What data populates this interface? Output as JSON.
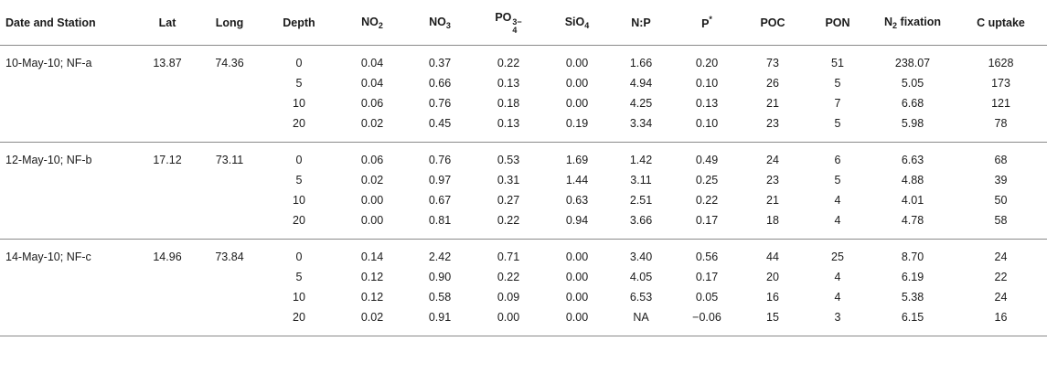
{
  "headers": {
    "date_station": "Date and Station",
    "lat": "Lat",
    "long": "Long",
    "depth": "Depth",
    "no2_base": "NO",
    "no2_sub": "2",
    "no3_base": "NO",
    "no3_sub": "3",
    "po4_base": "PO",
    "po4_sup": "3−",
    "po4_sub": "4",
    "sio4_base": "SiO",
    "sio4_sub": "4",
    "np": "N:P",
    "pstar_base": "P",
    "pstar_sup": "*",
    "poc": "POC",
    "pon": "PON",
    "n2_base": "N",
    "n2_sub": "2",
    "n2_rest": " fixation",
    "c_uptake": "C uptake"
  },
  "groups": [
    {
      "station": "10-May-10; NF-a",
      "lat": "13.87",
      "long": "74.36",
      "rows": [
        [
          "0",
          "0.04",
          "0.37",
          "0.22",
          "0.00",
          "1.66",
          "0.20",
          "73",
          "51",
          "238.07",
          "1628"
        ],
        [
          "5",
          "0.04",
          "0.66",
          "0.13",
          "0.00",
          "4.94",
          "0.10",
          "26",
          "5",
          "5.05",
          "173"
        ],
        [
          "10",
          "0.06",
          "0.76",
          "0.18",
          "0.00",
          "4.25",
          "0.13",
          "21",
          "7",
          "6.68",
          "121"
        ],
        [
          "20",
          "0.02",
          "0.45",
          "0.13",
          "0.19",
          "3.34",
          "0.10",
          "23",
          "5",
          "5.98",
          "78"
        ]
      ]
    },
    {
      "station": "12-May-10; NF-b",
      "lat": "17.12",
      "long": "73.11",
      "rows": [
        [
          "0",
          "0.06",
          "0.76",
          "0.53",
          "1.69",
          "1.42",
          "0.49",
          "24",
          "6",
          "6.63",
          "68"
        ],
        [
          "5",
          "0.02",
          "0.97",
          "0.31",
          "1.44",
          "3.11",
          "0.25",
          "23",
          "5",
          "4.88",
          "39"
        ],
        [
          "10",
          "0.00",
          "0.67",
          "0.27",
          "0.63",
          "2.51",
          "0.22",
          "21",
          "4",
          "4.01",
          "50"
        ],
        [
          "20",
          "0.00",
          "0.81",
          "0.22",
          "0.94",
          "3.66",
          "0.17",
          "18",
          "4",
          "4.78",
          "58"
        ]
      ]
    },
    {
      "station": "14-May-10; NF-c",
      "lat": "14.96",
      "long": "73.84",
      "rows": [
        [
          "0",
          "0.14",
          "2.42",
          "0.71",
          "0.00",
          "3.40",
          "0.56",
          "44",
          "25",
          "8.70",
          "24"
        ],
        [
          "5",
          "0.12",
          "0.90",
          "0.22",
          "0.00",
          "4.05",
          "0.17",
          "20",
          "4",
          "6.19",
          "22"
        ],
        [
          "10",
          "0.12",
          "0.58",
          "0.09",
          "0.00",
          "6.53",
          "0.05",
          "16",
          "4",
          "5.38",
          "24"
        ],
        [
          "20",
          "0.02",
          "0.91",
          "0.00",
          "0.00",
          "NA",
          "−0.06",
          "15",
          "3",
          "6.15",
          "16"
        ]
      ]
    }
  ]
}
